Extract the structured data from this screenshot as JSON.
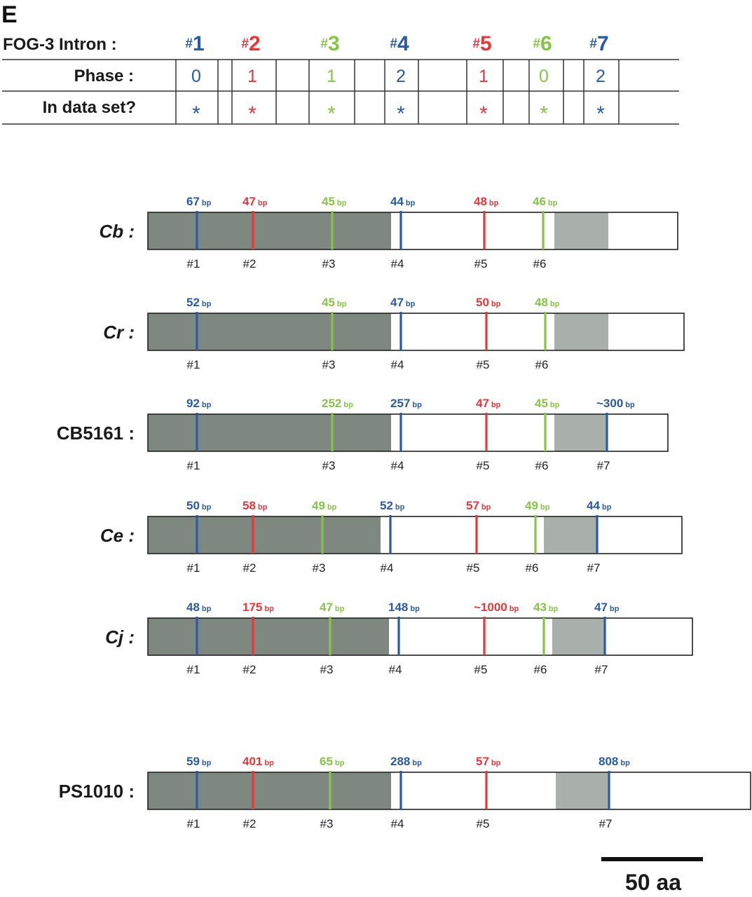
{
  "panel_label": "E",
  "colors": {
    "blue": "#2a5aa6",
    "red": "#e8363a",
    "green": "#86c447"
  },
  "header": {
    "intron_label": "FOG-3 Intron :",
    "phase_label": "Phase :",
    "dataset_label": "In data set?",
    "hash": "#",
    "star": "*",
    "introns": [
      {
        "num": "1",
        "phase": "0",
        "color": "blue"
      },
      {
        "num": "2",
        "phase": "1",
        "color": "red"
      },
      {
        "num": "3",
        "phase": "1",
        "color": "green"
      },
      {
        "num": "4",
        "phase": "2",
        "color": "blue"
      },
      {
        "num": "5",
        "phase": "1",
        "color": "red"
      },
      {
        "num": "6",
        "phase": "0",
        "color": "green"
      },
      {
        "num": "7",
        "phase": "2",
        "color": "blue"
      }
    ]
  },
  "species": [
    {
      "label": "Cb :",
      "italic": true,
      "introns": [
        {
          "num": "1",
          "size": "67",
          "color": "blue"
        },
        {
          "num": "2",
          "size": "47",
          "color": "red"
        },
        {
          "num": "3",
          "size": "45",
          "color": "green"
        },
        {
          "num": "4",
          "size": "44",
          "color": "blue"
        },
        {
          "num": "5",
          "size": "48",
          "color": "red"
        },
        {
          "num": "6",
          "size": "46",
          "color": "green"
        }
      ]
    },
    {
      "label": "Cr :",
      "italic": true,
      "introns": [
        {
          "num": "1",
          "size": "52",
          "color": "blue"
        },
        {
          "num": "3",
          "size": "45",
          "color": "green"
        },
        {
          "num": "4",
          "size": "47",
          "color": "blue"
        },
        {
          "num": "5",
          "size": "50",
          "color": "red"
        },
        {
          "num": "6",
          "size": "48",
          "color": "green"
        }
      ]
    },
    {
      "label": "CB5161 :",
      "italic": false,
      "introns": [
        {
          "num": "1",
          "size": "92",
          "color": "blue"
        },
        {
          "num": "3",
          "size": "252",
          "color": "green"
        },
        {
          "num": "4",
          "size": "257",
          "color": "blue"
        },
        {
          "num": "5",
          "size": "47",
          "color": "red"
        },
        {
          "num": "6",
          "size": "45",
          "color": "green"
        },
        {
          "num": "7",
          "size": "~300",
          "color": "blue"
        }
      ]
    },
    {
      "label": "Ce :",
      "italic": true,
      "introns": [
        {
          "num": "1",
          "size": "50",
          "color": "blue"
        },
        {
          "num": "2",
          "size": "58",
          "color": "red"
        },
        {
          "num": "3",
          "size": "49",
          "color": "green"
        },
        {
          "num": "4",
          "size": "52",
          "color": "blue"
        },
        {
          "num": "5",
          "size": "57",
          "color": "red"
        },
        {
          "num": "6",
          "size": "49",
          "color": "green"
        },
        {
          "num": "7",
          "size": "44",
          "color": "blue"
        }
      ]
    },
    {
      "label": "Cj :",
      "italic": true,
      "introns": [
        {
          "num": "1",
          "size": "48",
          "color": "blue"
        },
        {
          "num": "2",
          "size": "175",
          "color": "red"
        },
        {
          "num": "3",
          "size": "47",
          "color": "green"
        },
        {
          "num": "4",
          "size": "148",
          "color": "blue"
        },
        {
          "num": "5",
          "size": "~1000",
          "color": "red"
        },
        {
          "num": "6",
          "size": "43",
          "color": "green"
        },
        {
          "num": "7",
          "size": "47",
          "color": "blue"
        }
      ]
    },
    {
      "label": "PS1010 :",
      "italic": false,
      "introns": [
        {
          "num": "1",
          "size": "59",
          "color": "blue"
        },
        {
          "num": "2",
          "size": "401",
          "color": "red"
        },
        {
          "num": "3",
          "size": "65",
          "color": "green"
        },
        {
          "num": "4",
          "size": "288",
          "color": "blue"
        },
        {
          "num": "5",
          "size": "57",
          "color": "red"
        },
        {
          "num": "7",
          "size": "808",
          "color": "blue"
        }
      ]
    }
  ],
  "size_unit": "bp",
  "scale_bar_label": "50 aa"
}
